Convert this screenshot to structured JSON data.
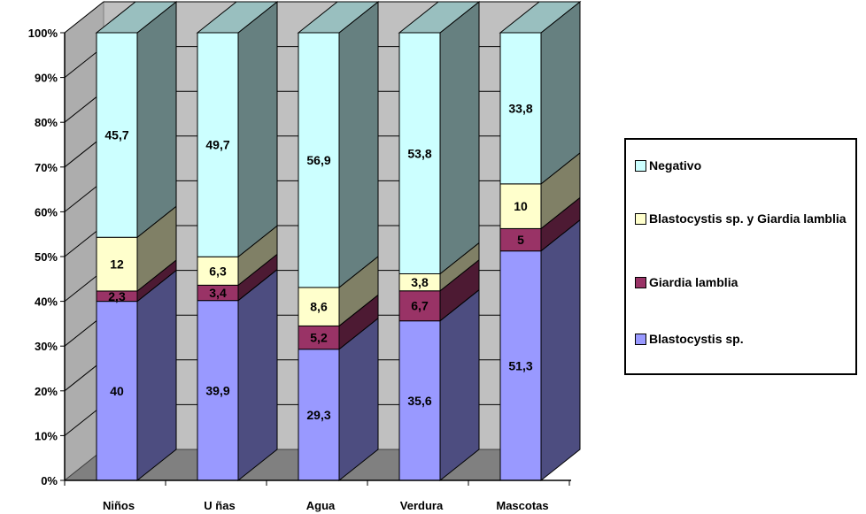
{
  "chart_data": {
    "type": "bar",
    "stacked": true,
    "percent": true,
    "three_d": true,
    "categories": [
      "Niños",
      "U ñas",
      "Agua",
      "Verdura",
      "Mascotas"
    ],
    "value_labels": {
      "Blastocystis sp.": [
        "40",
        "39,9",
        "29,3",
        "35,6",
        "51,3"
      ],
      "Giardia lamblia": [
        "2,3",
        "3,4",
        "5,2",
        "6,7",
        "5"
      ],
      "Blastocystis sp. y Giardia lamblia": [
        "12",
        "6,3",
        "8,6",
        "3,8",
        "10"
      ],
      "Negativo": [
        "45,7",
        "49,7",
        "56,9",
        "53,8",
        "33,8"
      ]
    },
    "series": [
      {
        "name": "Blastocystis sp.",
        "values": [
          40,
          39.9,
          29.3,
          35.6,
          51.3
        ],
        "color": "#9999ff"
      },
      {
        "name": "Giardia lamblia",
        "values": [
          2.3,
          3.4,
          5.2,
          6.7,
          5
        ],
        "color": "#993366"
      },
      {
        "name": "Blastocystis sp. y Giardia lamblia",
        "values": [
          12,
          6.3,
          8.6,
          3.8,
          10
        ],
        "color": "#ffffcc"
      },
      {
        "name": "Negativo",
        "values": [
          45.7,
          49.7,
          56.9,
          53.8,
          33.8
        ],
        "color": "#ccffff"
      }
    ],
    "yticks": [
      "0%",
      "10%",
      "20%",
      "30%",
      "40%",
      "50%",
      "60%",
      "70%",
      "80%",
      "90%",
      "100%"
    ],
    "ylim": [
      0,
      100
    ],
    "grid": true,
    "legend_position": "right",
    "legend_order": [
      "Negativo",
      "Blastocystis sp. y Giardia lamblia",
      "Giardia lamblia",
      "Blastocystis sp."
    ],
    "wall_color": "#c0c0c0",
    "floor_color": "#808080"
  }
}
